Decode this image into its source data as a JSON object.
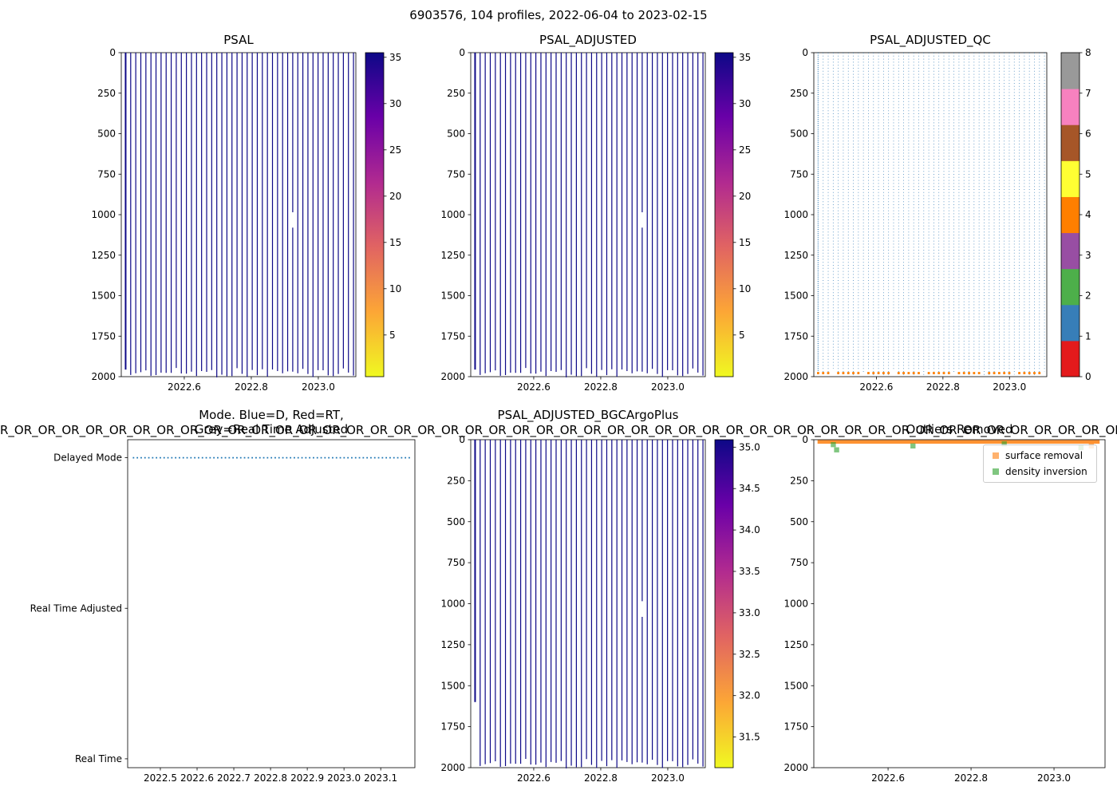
{
  "figure": {
    "suptitle": "6903576, 104 profiles, 2022-06-04 to 2023-02-15",
    "float_id": "6903576",
    "profiles_count": 104,
    "date_start": "2022-06-04",
    "date_end": "2023-02-15",
    "background": "#ffffff",
    "mode_string_overlay": "R_OR_OR_OR_OR_OR_OR_OR_OR_OR_OR_OR_OR_OR_OR_OR_OR_OR_OR_OR_OR_OR_OR_OR_OR_OR_OR_OR_OR_OR_OR_OR_OR_OR_OR_OR_OR_OR_OR_OR_OR_OR_OR_OR_OR_OR_OR_OR_OR_OR_OR_OR_OR_OR_OR_OR_OR_OR_OR_OR_OR_OR_OR_OR_OR_OR_OR_OR_OR_OR_OR_OR"
  },
  "chart_data": [
    {
      "id": "psal",
      "type": "heatmap",
      "title": "PSAL",
      "xlabel": "",
      "ylabel": "",
      "xlim": [
        2022.412,
        2023.112
      ],
      "ylim": [
        2000,
        0
      ],
      "xtick_vals": [
        2022.6,
        2022.8,
        2023.0
      ],
      "yticks": [
        0,
        250,
        500,
        750,
        1000,
        1250,
        1500,
        1750,
        2000
      ],
      "profiles": {
        "n": 104,
        "n_drawn": 46,
        "t_start": 2022.425,
        "t_end": 2023.105,
        "depth_top": 0,
        "depth_bottom_min": 1945,
        "depth_bottom_max": 2005,
        "color": "#0d0887",
        "approx_value_psu": 35
      },
      "gap": {
        "x": 2022.93,
        "depths": [
          985,
          1080
        ]
      },
      "colorbar": {
        "vmin": 0.5,
        "vmax": 35.5,
        "ticks": [
          5,
          10,
          15,
          20,
          25,
          30,
          35
        ],
        "cmap_top_to_bottom": [
          "#0d0887",
          "#6a00a8",
          "#b12a90",
          "#e16462",
          "#fca636",
          "#f0f921"
        ]
      }
    },
    {
      "id": "psal_adjusted",
      "type": "heatmap",
      "title": "PSAL_ADJUSTED",
      "xlabel": "",
      "ylabel": "",
      "xlim": [
        2022.412,
        2023.112
      ],
      "ylim": [
        2000,
        0
      ],
      "xtick_vals": [
        2022.6,
        2022.8,
        2023.0
      ],
      "yticks": [
        0,
        250,
        500,
        750,
        1000,
        1250,
        1500,
        1750,
        2000
      ],
      "profiles": {
        "n": 104,
        "n_drawn": 46,
        "t_start": 2022.425,
        "t_end": 2023.105,
        "depth_top": 0,
        "depth_bottom_min": 1945,
        "depth_bottom_max": 2005,
        "color": "#0d0887",
        "approx_value_psu": 35
      },
      "gap": {
        "x": 2022.93,
        "depths": [
          985,
          1080
        ]
      },
      "colorbar": {
        "vmin": 0.5,
        "vmax": 35.5,
        "ticks": [
          5,
          10,
          15,
          20,
          25,
          30,
          35
        ],
        "cmap_top_to_bottom": [
          "#0d0887",
          "#6a00a8",
          "#b12a90",
          "#e16462",
          "#fca636",
          "#f0f921"
        ]
      }
    },
    {
      "id": "psal_adjusted_qc",
      "type": "scatter",
      "title": "PSAL_ADJUSTED_QC",
      "xlabel": "",
      "ylabel": "",
      "xlim": [
        2022.412,
        2023.112
      ],
      "ylim": [
        2000,
        0
      ],
      "xtick_vals": [
        2022.6,
        2022.8,
        2023.0
      ],
      "yticks": [
        0,
        250,
        500,
        750,
        1000,
        1250,
        1500,
        1750,
        2000
      ],
      "dots": {
        "n_columns": 46,
        "t_start": 2022.425,
        "t_end": 2023.105,
        "depth_top": 0,
        "depth_bottom": 2000,
        "color": "#377eb8",
        "qc_value": 1
      },
      "bottom_flags": {
        "depth": 1978,
        "color": "#ff7f00",
        "qc_value": 4
      },
      "colorbar": {
        "ticks": [
          0,
          1,
          2,
          3,
          4,
          5,
          6,
          7,
          8
        ],
        "colors_bottom_to_top": [
          "#e41a1c",
          "#377eb8",
          "#4daf4a",
          "#984ea3",
          "#ff7f00",
          "#ffff33",
          "#a65628",
          "#f781bf",
          "#999999"
        ]
      }
    },
    {
      "id": "mode",
      "type": "line",
      "title_lines": [
        "Mode. Blue=D, Red=RT,",
        "Grey=Real Time Adjusted"
      ],
      "xlim": [
        2022.411,
        2023.193
      ],
      "xtick_vals": [
        2022.5,
        2022.6,
        2022.7,
        2022.8,
        2022.9,
        2023.0,
        2023.1
      ],
      "categories": [
        "Delayed Mode",
        "Real Time Adjusted",
        "Real Time"
      ],
      "series": {
        "category": "Delayed Mode",
        "color": "#1f77b4",
        "style": "dotted",
        "t_start": 2022.425,
        "t_end": 2023.18
      }
    },
    {
      "id": "psal_adjusted_bgc",
      "type": "heatmap",
      "title": "PSAL_ADJUSTED_BGCArgoPlus",
      "xlabel": "",
      "ylabel": "",
      "xlim": [
        2022.412,
        2023.112
      ],
      "ylim": [
        2000,
        0
      ],
      "xtick_vals": [
        2022.6,
        2022.8,
        2023.0
      ],
      "yticks": [
        0,
        250,
        500,
        750,
        1000,
        1250,
        1500,
        1750,
        2000
      ],
      "profiles": {
        "n": 104,
        "n_drawn": 46,
        "t_start": 2022.425,
        "t_end": 2023.105,
        "depth_top": 0,
        "depth_bottom_min": 1945,
        "depth_bottom_max": 2005,
        "color": "#0d0887",
        "approx_value_psu": 35
      },
      "first_line_bottom": 1600,
      "gap": {
        "x": 2022.93,
        "depths": [
          985,
          1080
        ]
      },
      "colorbar": {
        "vmin": 31.13,
        "vmax": 35.09,
        "ticks": [
          31.5,
          32.0,
          32.5,
          33.0,
          33.5,
          34.0,
          34.5,
          35.0
        ],
        "tick_fmt": "f1",
        "cmap_top_to_bottom": [
          "#0d0887",
          "#6a00a8",
          "#b12a90",
          "#e16462",
          "#fca636",
          "#f0f921"
        ]
      }
    },
    {
      "id": "outliers",
      "type": "scatter",
      "title": "Outliers Removed",
      "xlabel": "",
      "ylabel": "",
      "xlim": [
        2022.421,
        2023.123
      ],
      "ylim": [
        2000,
        0
      ],
      "xtick_vals": [
        2022.6,
        2022.8,
        2023.0
      ],
      "yticks": [
        0,
        250,
        500,
        750,
        1000,
        1250,
        1500,
        1750,
        2000
      ],
      "surface_removal": {
        "label": "surface removal",
        "color": "#ff7f0e",
        "depth": 0,
        "t_start": 2022.43,
        "t_end": 2023.11,
        "extra_points": [
          {
            "t": 2023.09,
            "depth": 38
          }
        ]
      },
      "density_inversion": {
        "label": "density inversion",
        "color": "#2ca02c",
        "points": [
          {
            "t": 2022.468,
            "depth": 30
          },
          {
            "t": 2022.476,
            "depth": 62
          },
          {
            "t": 2022.66,
            "depth": 38
          },
          {
            "t": 2022.88,
            "depth": 25
          },
          {
            "t": 2023.065,
            "depth": 48
          }
        ]
      },
      "legend": {
        "position": "upper right",
        "items": [
          {
            "label": "surface removal",
            "color": "#ff7f0e"
          },
          {
            "label": "density inversion",
            "color": "#2ca02c"
          }
        ]
      }
    }
  ]
}
